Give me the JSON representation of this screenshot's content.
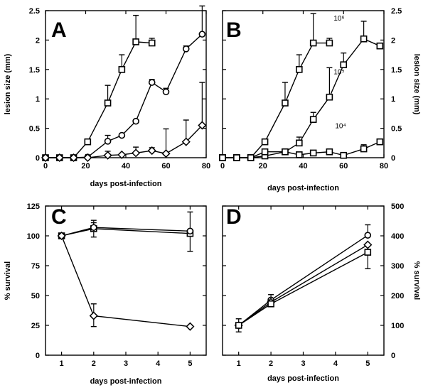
{
  "chart_data": [
    {
      "panel": "A",
      "type": "line",
      "xlabel": "days post-infection",
      "ylabel": "lesion size (mm)",
      "xlim": [
        0,
        80
      ],
      "ylim": [
        0,
        2.5
      ],
      "xticks": [
        0,
        20,
        40,
        60,
        80
      ],
      "yticks": [
        0,
        0.5,
        1,
        1.5,
        2,
        2.5
      ],
      "ytick_labels": [
        "0",
        "0.5",
        "1",
        "1.5",
        "2",
        "2.5"
      ],
      "y_axis_side": "left",
      "series": [
        {
          "marker": "square",
          "x": [
            0,
            7,
            14,
            21,
            31,
            38,
            45,
            53
          ],
          "y": [
            0,
            0,
            0,
            0.27,
            0.93,
            1.5,
            1.97,
            1.95
          ],
          "err_up": [
            0,
            0,
            0,
            0,
            0.3,
            0.25,
            0.45,
            0.08
          ]
        },
        {
          "marker": "circle",
          "x": [
            0,
            7,
            14,
            21,
            31,
            38,
            45,
            53,
            60,
            70,
            78
          ],
          "y": [
            0,
            0,
            0,
            0.01,
            0.28,
            0.38,
            0.62,
            1.28,
            1.12,
            1.85,
            2.1
          ],
          "err_up": [
            0,
            0,
            0,
            0,
            0.1,
            0,
            0,
            0.05,
            0.06,
            0.05,
            0.48
          ]
        },
        {
          "marker": "diamond",
          "x": [
            0,
            7,
            14,
            21,
            31,
            38,
            45,
            53,
            60,
            70,
            78
          ],
          "y": [
            0,
            0,
            0,
            0,
            0.04,
            0.05,
            0.08,
            0.12,
            0.07,
            0.27,
            0.55
          ],
          "err_up": [
            0,
            0,
            0,
            0,
            0.07,
            0,
            0.1,
            0.05,
            0.42,
            0.37,
            0.73
          ]
        }
      ]
    },
    {
      "panel": "B",
      "type": "line",
      "xlabel": "days post-infection",
      "ylabel": "lesion size (mm)",
      "xlim": [
        0,
        80
      ],
      "ylim": [
        0,
        2.5
      ],
      "xticks": [
        0,
        20,
        40,
        60,
        80
      ],
      "yticks": [
        0,
        0.5,
        1,
        1.5,
        2,
        2.5
      ],
      "ytick_labels": [
        "0",
        "0.5",
        "1",
        "1.5",
        "2",
        "2.5"
      ],
      "y_axis_side": "right",
      "series": [
        {
          "name": "10⁶",
          "marker": "square",
          "x": [
            0,
            7,
            14,
            21,
            31,
            38,
            45,
            53
          ],
          "y": [
            0,
            0,
            0,
            0.27,
            0.93,
            1.5,
            1.95,
            1.95
          ],
          "err_up": [
            0,
            0,
            0,
            0,
            0.35,
            0.25,
            0.5,
            0.08
          ]
        },
        {
          "name": "10⁵",
          "marker": "square",
          "x": [
            0,
            7,
            14,
            21,
            31,
            38,
            45,
            53,
            60,
            70,
            78
          ],
          "y": [
            0,
            0,
            0,
            0.03,
            0.1,
            0.25,
            0.65,
            1.03,
            1.58,
            2.02,
            1.9
          ],
          "err_up": [
            0,
            0,
            0,
            0,
            0.02,
            0.1,
            0.12,
            0.5,
            0.2,
            0.3,
            0
          ]
        },
        {
          "name": "10⁴",
          "marker": "square",
          "x": [
            0,
            7,
            14,
            21,
            31,
            38,
            45,
            53,
            60,
            70,
            78
          ],
          "y": [
            0,
            0,
            0,
            0.1,
            0.1,
            0.05,
            0.08,
            0.1,
            0.04,
            0.15,
            0.27
          ],
          "err_up": [
            0,
            0,
            0,
            0,
            0,
            0,
            0,
            0,
            0,
            0.07,
            0
          ]
        }
      ]
    },
    {
      "panel": "C",
      "type": "line",
      "xlabel": "days post-infection",
      "ylabel": "% survival",
      "xlim": [
        0.5,
        5.5
      ],
      "ylim": [
        0,
        125
      ],
      "xticks": [
        1,
        2,
        3,
        4,
        5
      ],
      "yticks": [
        0,
        25,
        50,
        75,
        100,
        125
      ],
      "ytick_labels": [
        "0",
        "25",
        "50",
        "75",
        "100",
        "125"
      ],
      "y_axis_side": "left",
      "series": [
        {
          "marker": "square",
          "x": [
            1,
            2,
            5
          ],
          "y": [
            100,
            106,
            102
          ],
          "err_up": [
            0,
            5,
            18
          ],
          "err_down": [
            0,
            7,
            15
          ]
        },
        {
          "marker": "circle",
          "x": [
            1,
            2,
            5
          ],
          "y": [
            100,
            107,
            104
          ],
          "err_up": [
            0,
            6,
            0
          ],
          "err_down": [
            0,
            0,
            0
          ]
        },
        {
          "marker": "diamond",
          "x": [
            1,
            2,
            5
          ],
          "y": [
            100,
            33,
            24
          ],
          "err_up": [
            0,
            10,
            0
          ],
          "err_down": [
            0,
            9,
            0
          ]
        }
      ]
    },
    {
      "panel": "D",
      "type": "line",
      "xlabel": "days post-infection",
      "ylabel": "% survival",
      "xlim": [
        0.5,
        5.5
      ],
      "ylim": [
        0,
        500
      ],
      "xticks": [
        1,
        2,
        3,
        4,
        5
      ],
      "yticks": [
        0,
        100,
        200,
        300,
        400,
        500
      ],
      "ytick_labels": [
        "0",
        "100",
        "200",
        "300",
        "400",
        "500"
      ],
      "y_axis_side": "right",
      "series": [
        {
          "marker": "circle",
          "x": [
            1,
            2,
            5
          ],
          "y": [
            100,
            185,
            402
          ],
          "err_up": [
            0,
            18,
            35
          ],
          "err_down": [
            0,
            0,
            0
          ]
        },
        {
          "marker": "diamond",
          "x": [
            1,
            2,
            5
          ],
          "y": [
            100,
            178,
            370
          ],
          "err_up": [
            0,
            0,
            0
          ],
          "err_down": [
            0,
            0,
            0
          ]
        },
        {
          "marker": "square",
          "x": [
            1,
            2,
            5
          ],
          "y": [
            100,
            172,
            345
          ],
          "err_up": [
            22,
            0,
            0
          ],
          "err_down": [
            22,
            0,
            55
          ]
        }
      ]
    }
  ],
  "panels": {
    "A": {
      "letter": "A"
    },
    "B": {
      "letter": "B"
    },
    "C": {
      "letter": "C"
    },
    "D": {
      "letter": "D"
    }
  }
}
